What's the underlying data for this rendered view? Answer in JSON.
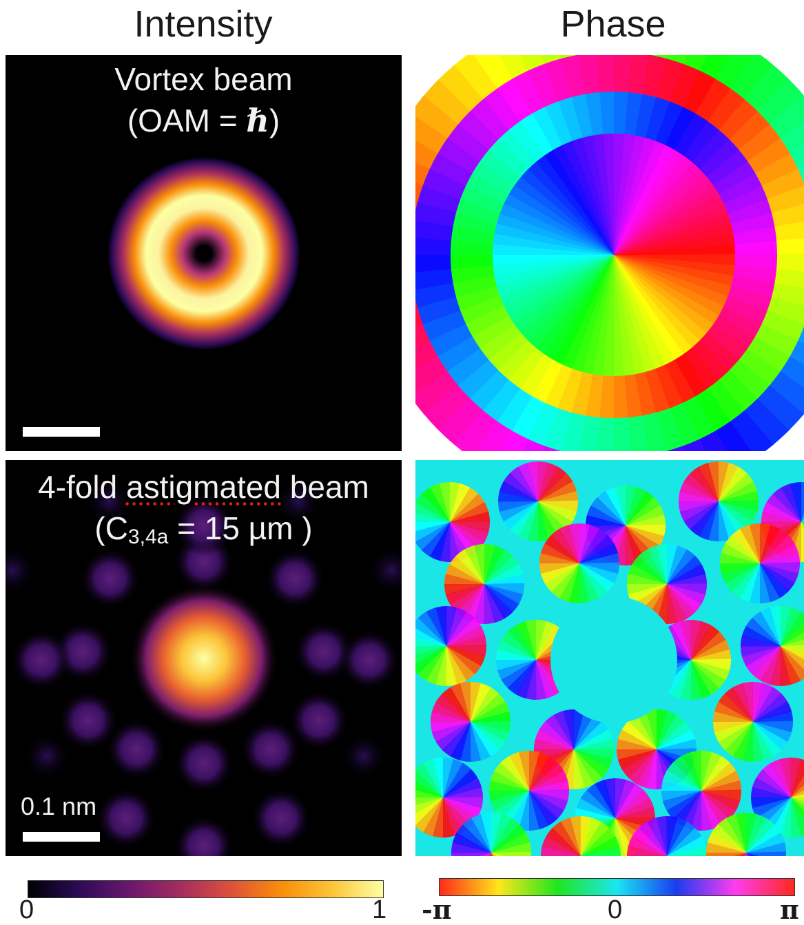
{
  "headers": {
    "intensity": "Intensity",
    "phase": "Phase"
  },
  "panels": {
    "vortex": {
      "title_line1": "Vortex beam",
      "title_line2_pre": "(OAM = ",
      "title_line2_symbol": "ℏ",
      "title_line2_post": ")"
    },
    "astig": {
      "title_line1_pre": "4-fold ",
      "title_line1_word": "astigmated",
      "title_line1_post": " beam",
      "title_line2_pre": "(C",
      "title_line2_sub": "3,4a",
      "title_line2_post": " = 15 µm )"
    },
    "scalebar_label": "0.1 nm"
  },
  "colorbars": {
    "intensity": {
      "min_label": "0",
      "max_label": "1",
      "colors": [
        "#000004",
        "#2c0b57",
        "#6b176e",
        "#a52c60",
        "#dd513a",
        "#f98e09",
        "#fcc53a",
        "#fcffa4"
      ]
    },
    "phase": {
      "min_label": "-π",
      "mid_label": "0",
      "max_label": "π",
      "colors": [
        "#ff2a1a",
        "#ffe61a",
        "#1ee61e",
        "#1ae6f0",
        "#1a3cf0",
        "#ff3cf0",
        "#ff2a1a"
      ]
    }
  }
}
